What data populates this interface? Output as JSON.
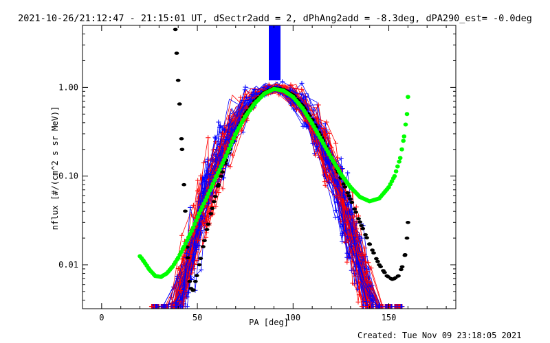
{
  "chart_data": {
    "type": "scatter",
    "title": "2021-10-26/21:12:47 - 21:15:01 UT, dSectr2add = 2, dPhAng2add = -8.3deg, dPA290_est= -0.0deg",
    "xlabel": "PA [deg]",
    "ylabel": "nflux [#/(cm^2 s sr MeV)]",
    "xlim": [
      -10,
      185
    ],
    "ylim": [
      0.0032,
      5.0
    ],
    "y_scale": "log",
    "grid": false,
    "x_ticks": [
      {
        "value": 0,
        "label": "0"
      },
      {
        "value": 50,
        "label": "50"
      },
      {
        "value": 100,
        "label": "100"
      },
      {
        "value": 150,
        "label": "150"
      }
    ],
    "y_ticks": [
      {
        "value": 0.01,
        "label": "0.01"
      },
      {
        "value": 0.1,
        "label": "0.10"
      },
      {
        "value": 1.0,
        "label": "1.00"
      }
    ],
    "footer": "Created: Tue Nov 09 23:18:05 2021",
    "colors": {
      "red": "#ff0000",
      "blue": "#0000ff",
      "green": "#00ff00",
      "black": "#000000"
    },
    "vertical_marker": {
      "x_range": [
        87.5,
        93.5
      ],
      "y_range": [
        1.2,
        5.0
      ],
      "color": "#0000ff"
    },
    "series": [
      {
        "color": "#000000",
        "style": "thick-dashed",
        "points": [
          [
            38.5,
            4.5
          ],
          [
            40,
            1.2
          ],
          [
            41,
            0.5
          ],
          [
            42,
            0.2
          ],
          [
            43,
            0.08
          ],
          [
            44,
            0.03
          ],
          [
            45,
            0.012
          ],
          [
            46,
            0.0065
          ],
          [
            47,
            0.005
          ],
          [
            48,
            0.0052
          ],
          [
            49,
            0.0065
          ],
          [
            51,
            0.01
          ],
          [
            53,
            0.016
          ],
          [
            55,
            0.025
          ],
          [
            58,
            0.045
          ],
          [
            61,
            0.08
          ],
          [
            65,
            0.15
          ],
          [
            70,
            0.3
          ],
          [
            75,
            0.5
          ],
          [
            80,
            0.7
          ],
          [
            85,
            0.88
          ],
          [
            90,
            0.98
          ],
          [
            95,
            0.95
          ],
          [
            100,
            0.82
          ],
          [
            105,
            0.62
          ],
          [
            110,
            0.43
          ],
          [
            115,
            0.27
          ],
          [
            120,
            0.16
          ],
          [
            125,
            0.095
          ],
          [
            130,
            0.055
          ],
          [
            135,
            0.03
          ],
          [
            140,
            0.017
          ],
          [
            145,
            0.01
          ],
          [
            149,
            0.0075
          ],
          [
            152,
            0.0068
          ],
          [
            155,
            0.0075
          ],
          [
            157,
            0.0095
          ],
          [
            158.5,
            0.013
          ],
          [
            159.5,
            0.02
          ],
          [
            160,
            0.03
          ],
          [
            160.3,
            0.04
          ]
        ]
      },
      {
        "color": "#00ff00",
        "style": "thick-dotted",
        "points": [
          [
            20,
            0.0125
          ],
          [
            22,
            0.011
          ],
          [
            25,
            0.0088
          ],
          [
            28,
            0.0075
          ],
          [
            31,
            0.0073
          ],
          [
            34,
            0.008
          ],
          [
            37,
            0.0095
          ],
          [
            40,
            0.012
          ],
          [
            43,
            0.016
          ],
          [
            47,
            0.024
          ],
          [
            51,
            0.038
          ],
          [
            55,
            0.058
          ],
          [
            60,
            0.1
          ],
          [
            65,
            0.17
          ],
          [
            70,
            0.3
          ],
          [
            75,
            0.47
          ],
          [
            80,
            0.66
          ],
          [
            85,
            0.85
          ],
          [
            90,
            0.96
          ],
          [
            95,
            0.92
          ],
          [
            100,
            0.78
          ],
          [
            105,
            0.58
          ],
          [
            110,
            0.39
          ],
          [
            115,
            0.25
          ],
          [
            120,
            0.16
          ],
          [
            125,
            0.105
          ],
          [
            130,
            0.075
          ],
          [
            135,
            0.058
          ],
          [
            140,
            0.052
          ],
          [
            145,
            0.056
          ],
          [
            150,
            0.075
          ],
          [
            153,
            0.1
          ],
          [
            156,
            0.16
          ],
          [
            158,
            0.28
          ],
          [
            159.5,
            0.5
          ],
          [
            160,
            0.78
          ]
        ]
      }
    ]
  }
}
